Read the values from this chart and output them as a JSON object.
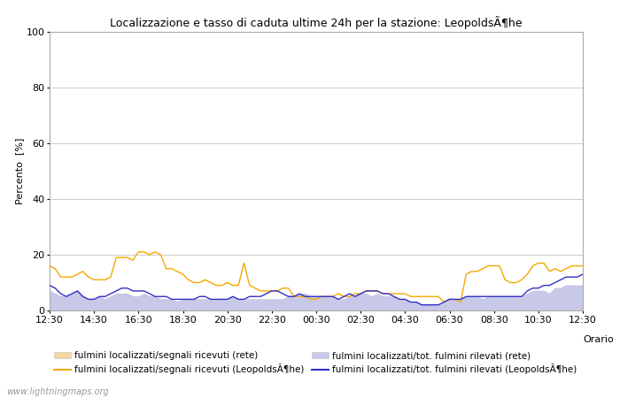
{
  "title": "Localizzazione e tasso di caduta ultime 24h per la stazione: LeopoldsÃ¶he",
  "ylabel": "Percento  [%]",
  "xlabel": "Orario",
  "watermark": "www.lightningmaps.org",
  "ylim": [
    0,
    100
  ],
  "yticks": [
    0,
    20,
    40,
    60,
    80,
    100
  ],
  "xtick_labels": [
    "12:30",
    "14:30",
    "16:30",
    "18:30",
    "20:30",
    "22:30",
    "00:30",
    "02:30",
    "04:30",
    "06:30",
    "08:30",
    "10:30",
    "12:30"
  ],
  "color_fill_rete_orange": "#f5d6a0",
  "color_fill_rete_blue": "#c8c8e8",
  "color_line_orange": "#f5a800",
  "color_line_blue": "#3030c8",
  "background_color": "#ffffff",
  "grid_color": "#cccccc",
  "legend_labels": [
    "fulmini localizzati/segnali ricevuti (rete)",
    "fulmini localizzati/segnali ricevuti (LeopoldsÃ¶he)",
    "fulmini localizzati/tot. fulmini rilevati (rete)",
    "fulmini localizzati/tot. fulmini rilevati (LeopoldsÃ¶he)"
  ],
  "orange_fill_data": [
    1.5,
    1.5,
    1.5,
    1.5,
    1.5,
    1.5,
    1.5,
    1.5,
    1.5,
    1.5,
    1.5,
    1.5,
    1.5,
    1.5,
    1.5,
    1.5,
    1.5,
    1.5,
    1.5,
    1.5,
    1.5,
    1.5,
    1.5,
    1.5,
    1.5,
    1.5,
    1.5,
    1.5,
    1.5,
    1.5,
    1.5,
    1.5,
    1.5,
    1.5,
    1.5,
    1.5,
    1.5,
    1.5,
    1.5,
    1.5,
    1.5,
    1.5,
    1.5,
    1.5,
    1.5,
    1.5,
    1.5,
    1.5,
    1.5,
    1.5,
    1.5,
    1.5,
    1.5,
    1.5,
    1.5,
    1.5,
    1.5,
    1.5,
    1.5,
    1.5,
    1.5,
    1.5,
    1.5,
    1.5,
    1.5,
    1.5,
    1.5,
    1.5,
    1.5,
    1.5,
    1.5,
    1.5,
    1.5,
    1.5,
    1.5,
    1.5,
    1.5,
    1.5,
    1.5,
    1.5,
    1.5,
    1.5,
    1.5,
    1.5,
    1.5,
    1.5,
    1.5,
    1.5,
    1.5,
    1.5,
    1.5,
    1.5,
    1.5,
    1.5,
    1.5,
    1.5,
    1.5
  ],
  "blue_fill_data": [
    7,
    6,
    5,
    5,
    6,
    7,
    5,
    4,
    4,
    5,
    4,
    5,
    6,
    6,
    6,
    5,
    5,
    6,
    5,
    5,
    4,
    4,
    4,
    3,
    4,
    4,
    4,
    4,
    4,
    4,
    4,
    4,
    4,
    5,
    4,
    4,
    4,
    4,
    4,
    4,
    4,
    4,
    4,
    5,
    5,
    6,
    6,
    5,
    5,
    5,
    5,
    5,
    4,
    4,
    5,
    5,
    6,
    6,
    5,
    6,
    5,
    5,
    5,
    4,
    4,
    3,
    3,
    2,
    2,
    2,
    2,
    3,
    4,
    4,
    4,
    5,
    5,
    5,
    4,
    5,
    5,
    5,
    5,
    5,
    5,
    5,
    6,
    7,
    7,
    7,
    6,
    8,
    8,
    9,
    9,
    9,
    9
  ],
  "orange_line_data": [
    16,
    15,
    12,
    12,
    12,
    13,
    14,
    12,
    11,
    11,
    11,
    12,
    19,
    19,
    19,
    18,
    21,
    21,
    20,
    21,
    20,
    15,
    15,
    14,
    13,
    11,
    10,
    10,
    11,
    10,
    9,
    9,
    10,
    9,
    9,
    17,
    9,
    8,
    7,
    7,
    7,
    7,
    8,
    8,
    5,
    5,
    5,
    4,
    4,
    5,
    5,
    5,
    6,
    5,
    5,
    6,
    6,
    7,
    7,
    7,
    6,
    6,
    6,
    6,
    6,
    5,
    5,
    5,
    5,
    5,
    5,
    3,
    4,
    4,
    3,
    13,
    14,
    14,
    15,
    16,
    16,
    16,
    11,
    10,
    10,
    11,
    13,
    16,
    17,
    17,
    14,
    15,
    14,
    15,
    16,
    16,
    16
  ],
  "blue_line_data": [
    9,
    8,
    6,
    5,
    6,
    7,
    5,
    4,
    4,
    5,
    5,
    6,
    7,
    8,
    8,
    7,
    7,
    7,
    6,
    5,
    5,
    5,
    4,
    4,
    4,
    4,
    4,
    5,
    5,
    4,
    4,
    4,
    4,
    5,
    4,
    4,
    5,
    5,
    5,
    6,
    7,
    7,
    6,
    5,
    5,
    6,
    5,
    5,
    5,
    5,
    5,
    5,
    4,
    5,
    6,
    5,
    6,
    7,
    7,
    7,
    6,
    6,
    5,
    4,
    4,
    3,
    3,
    2,
    2,
    2,
    2,
    3,
    4,
    4,
    4,
    5,
    5,
    5,
    5,
    5,
    5,
    5,
    5,
    5,
    5,
    5,
    7,
    8,
    8,
    9,
    9,
    10,
    11,
    12,
    12,
    12,
    13
  ]
}
